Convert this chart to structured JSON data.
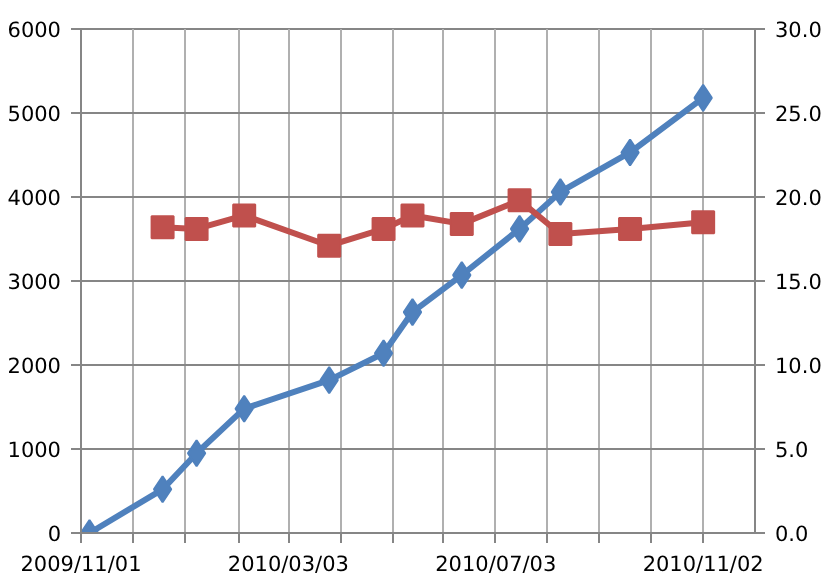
{
  "chart_data": {
    "type": "line",
    "x": [
      "2009-11-06",
      "2009-12-19",
      "2010-01-08",
      "2010-02-05",
      "2010-03-27",
      "2010-04-28",
      "2010-05-15",
      "2010-06-13",
      "2010-07-17",
      "2010-08-10",
      "2010-09-20",
      "2010-11-02"
    ],
    "series": [
      {
        "color": "#4f81bd",
        "marker": "diamond",
        "values": [
          0,
          520,
          950,
          1480,
          1820,
          2140,
          2630,
          3070,
          3620,
          4060,
          4530,
          5180
        ]
      },
      {
        "color": "#c0504d",
        "marker": "square",
        "axis": "y2",
        "x": [
          "2009-12-19",
          "2010-01-08",
          "2010-02-05",
          "2010-03-27",
          "2010-04-28",
          "2010-05-15",
          "2010-06-13",
          "2010-07-17",
          "2010-08-10",
          "2010-09-20",
          "2010-11-02"
        ],
        "values": [
          18.2,
          18.1,
          18.9,
          17.1,
          18.1,
          18.9,
          18.4,
          19.8,
          17.8,
          18.1,
          18.5
        ]
      }
    ],
    "xlim": [
      "2009-11-01",
      "2010-12-02T12:00"
    ],
    "xticks": [
      {
        "value": "2009-11-01",
        "label": "2009/11/01"
      },
      {
        "value": "2009-12-01T12:00",
        "label": null
      },
      {
        "value": "2010-01-01",
        "label": null
      },
      {
        "value": "2010-02-01T12:00",
        "label": null
      },
      {
        "value": "2010-03-03",
        "label": "2010/03/03"
      },
      {
        "value": "2010-04-02T12:00",
        "label": null
      },
      {
        "value": "2010-05-03",
        "label": null
      },
      {
        "value": "2010-06-02T12:00",
        "label": null
      },
      {
        "value": "2010-07-03",
        "label": "2010/07/03"
      },
      {
        "value": "2010-08-02T12:00",
        "label": null
      },
      {
        "value": "2010-09-02",
        "label": null
      },
      {
        "value": "2010-10-02T12:00",
        "label": null
      },
      {
        "value": "2010-11-02",
        "label": "2010/11/02"
      }
    ],
    "ylim": [
      0,
      6000
    ],
    "yticks": [
      0,
      1000,
      2000,
      3000,
      4000,
      5000,
      6000
    ],
    "y2lim": [
      0,
      30
    ],
    "y2ticks": [
      {
        "value": 0,
        "label": "0.0"
      },
      {
        "value": 5,
        "label": "5.0"
      },
      {
        "value": 10,
        "label": "10.0"
      },
      {
        "value": 15,
        "label": "15.0"
      },
      {
        "value": 20,
        "label": "20.0"
      },
      {
        "value": 25,
        "label": "25.0"
      },
      {
        "value": 30,
        "label": "30.0"
      }
    ],
    "grid": true,
    "line_style": "solid"
  }
}
